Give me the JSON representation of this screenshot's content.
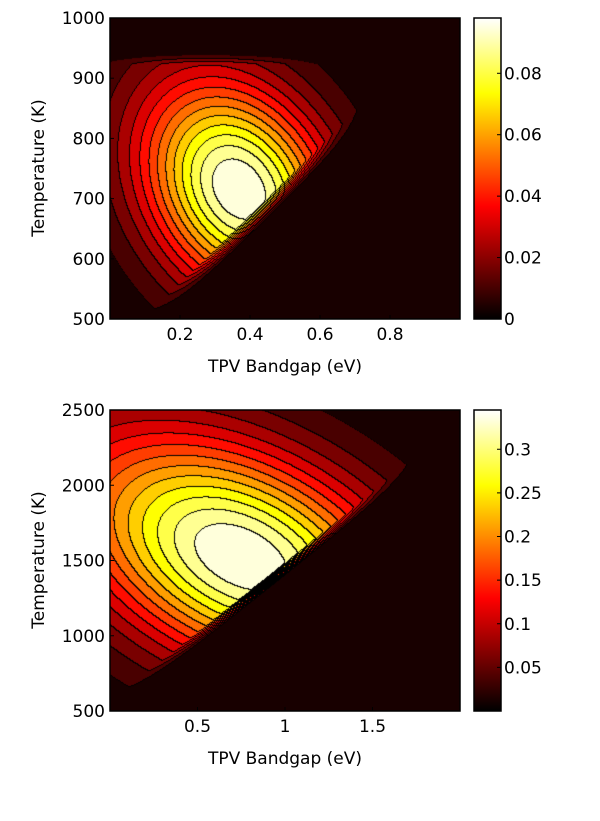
{
  "chart_data": [
    {
      "type": "heatmap",
      "style": "filled-contour",
      "colormap": "hot",
      "xlabel": "TPV Bandgap (eV)",
      "ylabel": "Temperature (K)",
      "xlim": [
        0,
        1.0
      ],
      "ylim": [
        500,
        1000
      ],
      "xticks": [
        0.2,
        0.4,
        0.6,
        0.8
      ],
      "xtick_labels": [
        "0.2",
        "0.4",
        "0.6",
        "0.8"
      ],
      "yticks": [
        500,
        600,
        700,
        800,
        900,
        1000
      ],
      "ytick_labels": [
        "500",
        "600",
        "700",
        "800",
        "900",
        "1000"
      ],
      "colorbar": {
        "range": [
          0,
          0.098
        ],
        "ticks": [
          0,
          0.02,
          0.04,
          0.06,
          0.08
        ],
        "tick_labels": [
          "0",
          "0.02",
          "0.04",
          "0.06",
          "0.08"
        ]
      },
      "peak": {
        "x": 0.37,
        "y": 715,
        "value": 0.098
      }
    },
    {
      "type": "heatmap",
      "style": "filled-contour",
      "colormap": "hot",
      "xlabel": "TPV Bandgap (eV)",
      "ylabel": "Temperature (K)",
      "xlim": [
        0,
        2.0
      ],
      "ylim": [
        500,
        2500
      ],
      "xticks": [
        0.5,
        1,
        1.5
      ],
      "xtick_labels": [
        "0.5",
        "1",
        "1.5"
      ],
      "yticks": [
        500,
        1000,
        1500,
        2000,
        2500
      ],
      "ytick_labels": [
        "500",
        "1000",
        "1500",
        "2000",
        "2500"
      ],
      "colorbar": {
        "range": [
          0,
          0.345
        ],
        "ticks": [
          0.05,
          0.1,
          0.15,
          0.2,
          0.25,
          0.3
        ],
        "tick_labels": [
          "0.05",
          "0.1",
          "0.15",
          "0.2",
          "0.25",
          "0.3"
        ]
      },
      "peak": {
        "x": 0.75,
        "y": 1520,
        "value": 0.345
      }
    }
  ]
}
